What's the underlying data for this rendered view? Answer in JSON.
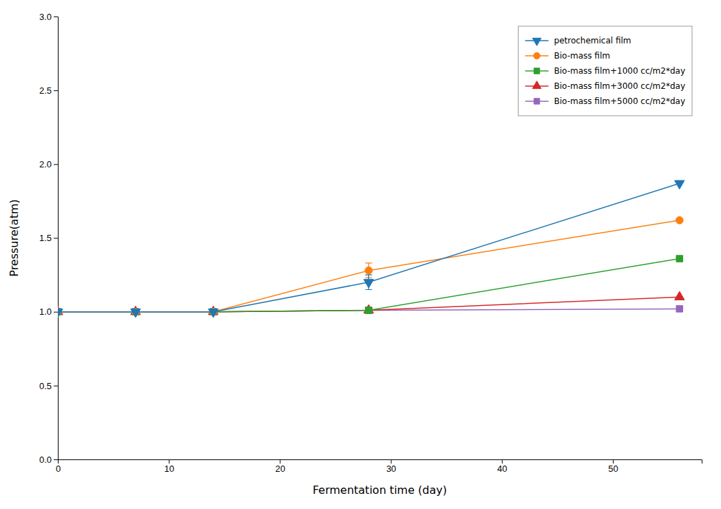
{
  "chart_data": {
    "type": "line",
    "x_label": "Fermentation time (day)",
    "y_label": "Pressure(atm)",
    "x": [
      0,
      7,
      14,
      28,
      56
    ],
    "series": [
      {
        "name": "petrochemical film",
        "values": [
          1.0,
          1.0,
          1.0,
          1.2,
          1.87
        ],
        "errors": [
          0.0,
          0.0,
          0.0,
          0.05,
          0.0
        ],
        "marker": "triangle-down"
      },
      {
        "name": "Bio-mass film",
        "values": [
          1.0,
          1.0,
          1.0,
          1.28,
          1.62
        ],
        "errors": [
          0.0,
          0.0,
          0.0,
          0.05,
          0.0
        ],
        "marker": "circle"
      },
      {
        "name": "Bio-mass film+1000 cc/m2*day",
        "values": [
          1.0,
          1.0,
          1.0,
          1.01,
          1.36
        ],
        "marker": "square"
      },
      {
        "name": "Bio-mass film+3000 cc/m2*day",
        "values": [
          1.0,
          1.0,
          1.0,
          1.01,
          1.1
        ],
        "marker": "triangle-up"
      },
      {
        "name": "Bio-mass film+5000 cc/m2*day",
        "values": [
          1.0,
          1.0,
          1.0,
          1.01,
          1.02
        ],
        "marker": "square"
      }
    ],
    "xlim": [
      0,
      58
    ],
    "xticks": [
      0,
      10,
      20,
      30,
      40,
      50
    ],
    "ylim": [
      0.0,
      3.0
    ],
    "yticks": [
      {
        "value": 0.0,
        "label": "0.0"
      },
      0.5,
      {
        "value": 1.0,
        "label": "1.0"
      },
      1.5,
      {
        "value": 2.0,
        "label": "2.0"
      },
      2.5,
      {
        "value": 3.0,
        "label": "3.0"
      }
    ],
    "grid": false,
    "legend": "upper right"
  }
}
